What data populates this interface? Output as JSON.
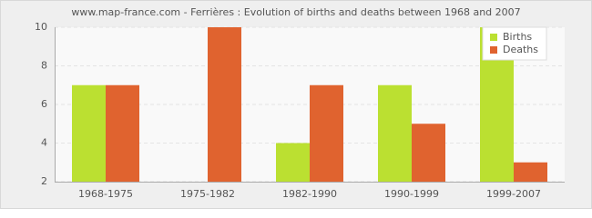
{
  "chart_data": {
    "type": "bar",
    "title": "www.map-france.com - Ferrières : Evolution of births and deaths between 1968 and 2007",
    "categories": [
      "1968-1975",
      "1975-1982",
      "1982-1990",
      "1990-1999",
      "1999-2007"
    ],
    "series": [
      {
        "name": "Births",
        "color": "#bbe031",
        "values": [
          7,
          2,
          4,
          7,
          10
        ]
      },
      {
        "name": "Deaths",
        "color": "#e0632f",
        "values": [
          7,
          10,
          7,
          5,
          3
        ]
      }
    ],
    "ylim": [
      2,
      10
    ],
    "yticks": [
      2,
      4,
      6,
      8,
      10
    ],
    "grid": true,
    "legend": "top-right"
  }
}
